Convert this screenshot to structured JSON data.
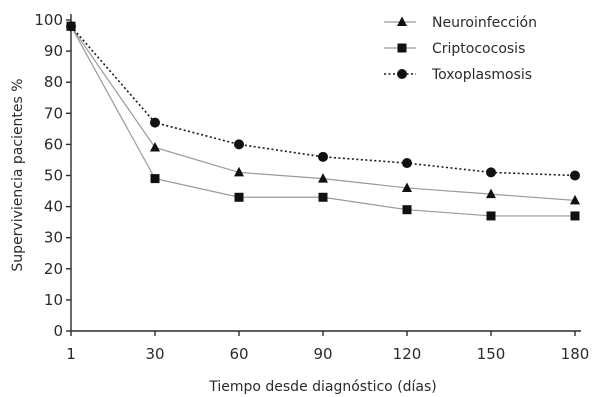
{
  "chart_data": {
    "type": "line",
    "title": "",
    "xlabel": "Tiempo desde diagnóstico (días)",
    "ylabel": "Superviviencia pacientes %",
    "x": [
      1,
      30,
      60,
      90,
      120,
      150,
      180
    ],
    "x_tick_labels": [
      "1",
      "30",
      "60",
      "90",
      "120",
      "150",
      "180"
    ],
    "y_ticks": [
      0,
      10,
      20,
      30,
      40,
      50,
      60,
      70,
      80,
      90,
      100
    ],
    "ylim": [
      0,
      100
    ],
    "grid": false,
    "legend_position": "top-right",
    "series": [
      {
        "name": "Neuroinfección",
        "marker": "triangle",
        "line_style": "solid",
        "color": "#9a9a9a",
        "values": [
          98,
          59,
          51,
          49,
          46,
          44,
          42
        ]
      },
      {
        "name": "Criptococosis",
        "marker": "square",
        "line_style": "solid",
        "color": "#9a9a9a",
        "values": [
          98,
          49,
          43,
          43,
          39,
          37,
          37
        ]
      },
      {
        "name": "Toxoplasmosis",
        "marker": "circle",
        "line_style": "dotted",
        "color": "#1a1a1a",
        "values": [
          98,
          67,
          60,
          56,
          54,
          51,
          50
        ]
      }
    ]
  }
}
